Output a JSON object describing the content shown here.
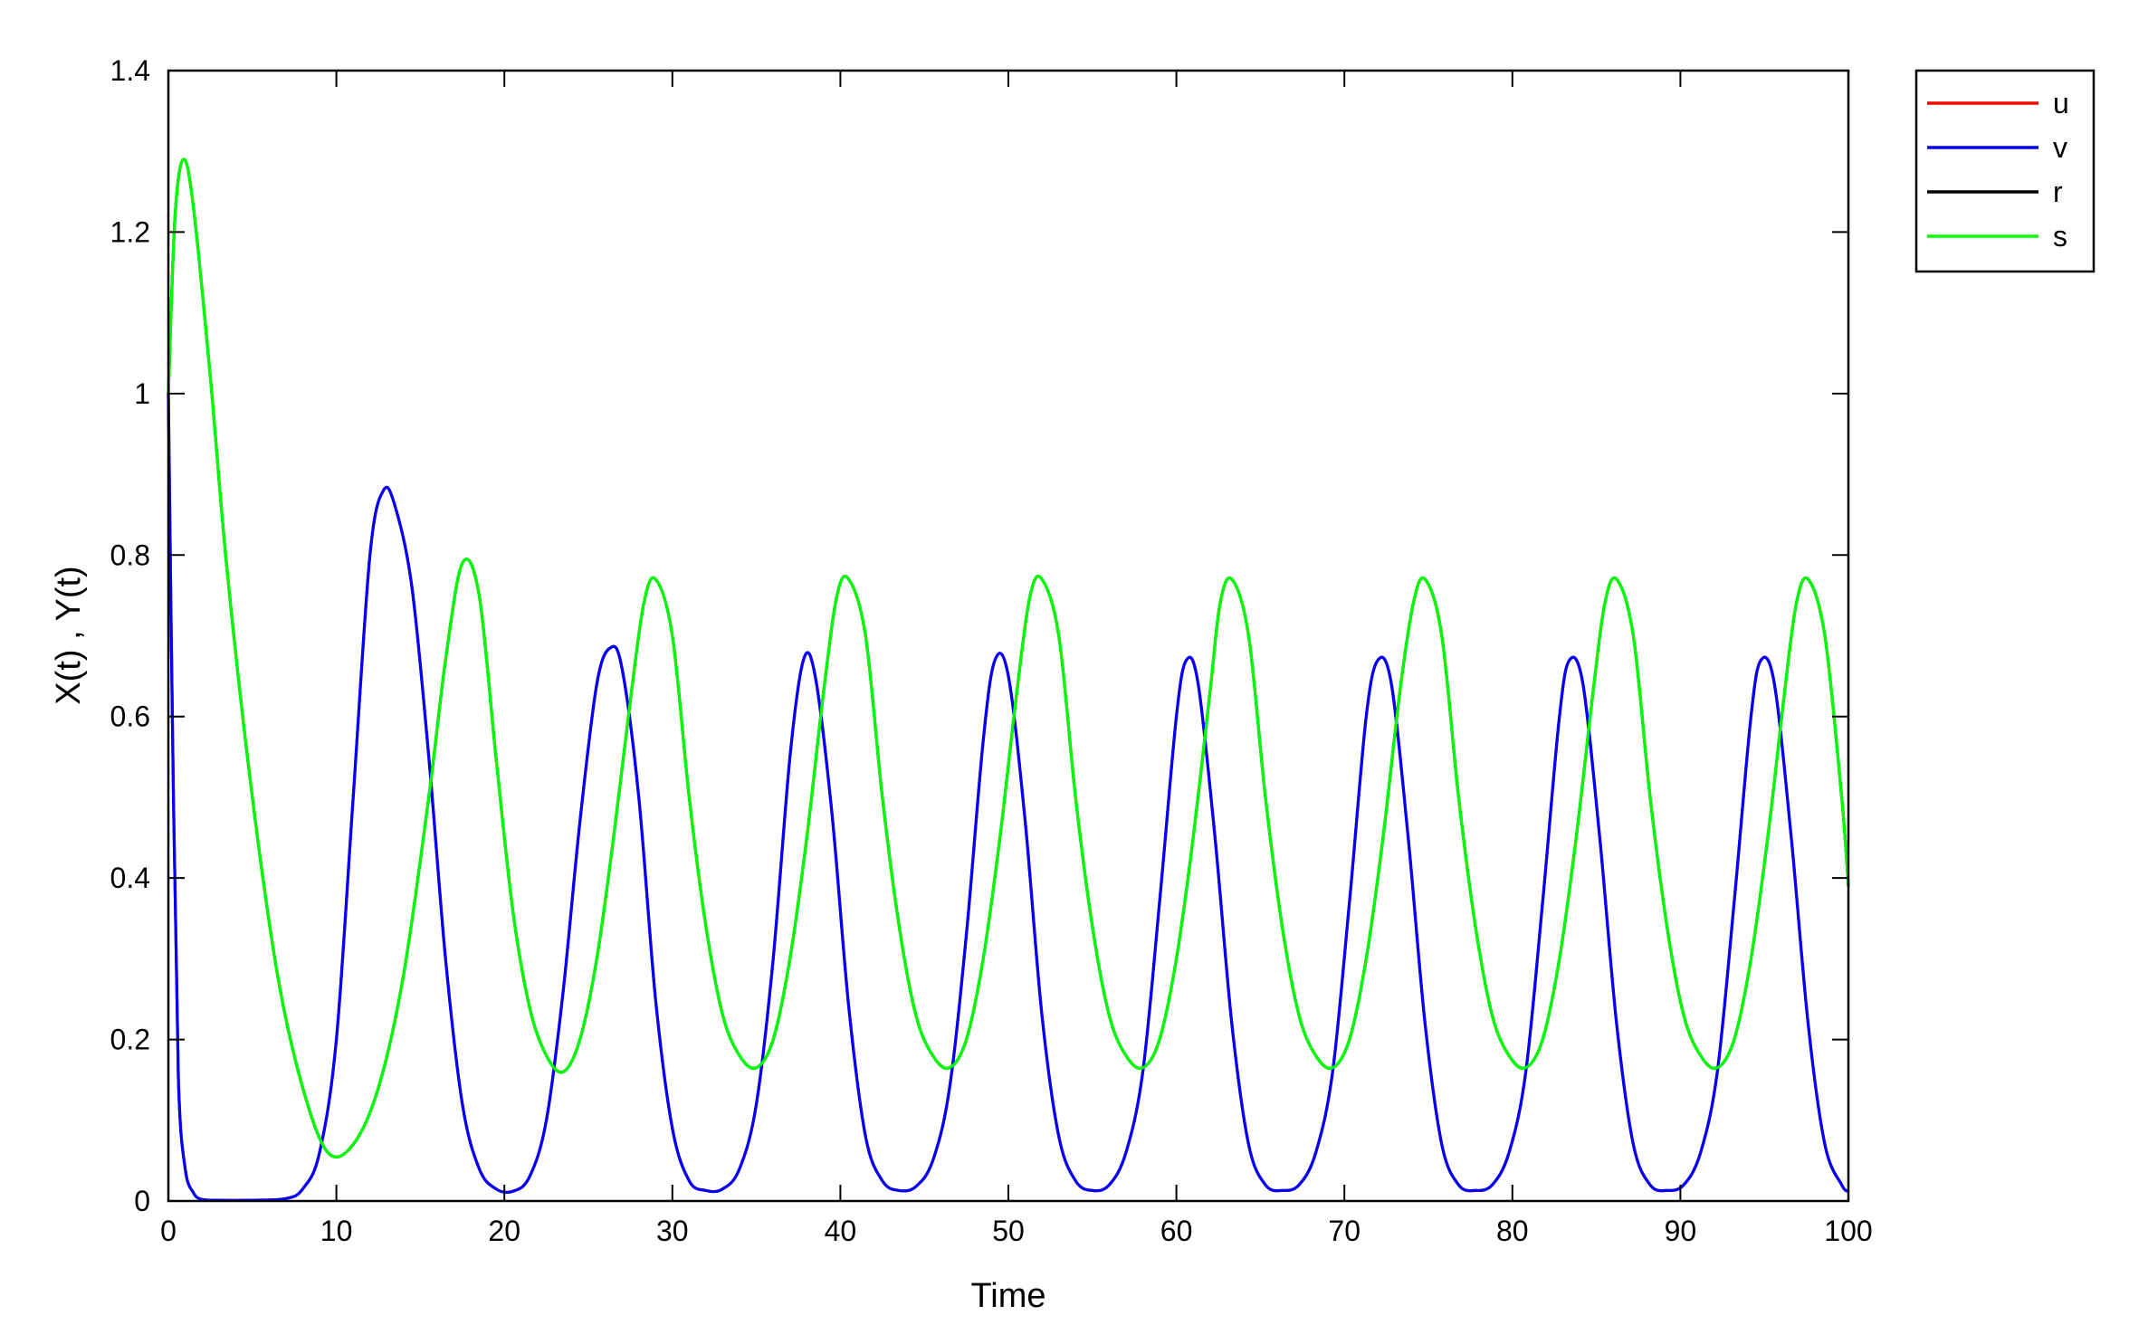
{
  "chart_data": {
    "type": "line",
    "title": "",
    "xlabel": "Time",
    "ylabel": "X(t) , Y(t)",
    "xlim": [
      0,
      100
    ],
    "ylim": [
      0,
      1.4
    ],
    "xticks": [
      0,
      10,
      20,
      30,
      40,
      50,
      60,
      70,
      80,
      90,
      100
    ],
    "yticks": [
      0,
      0.2,
      0.4,
      0.6,
      0.8,
      1,
      1.2,
      1.4
    ],
    "grid": false,
    "legend_position": "outside-top-right",
    "series": [
      {
        "name": "u",
        "color": "#ff0000",
        "x": [
          0,
          0.3,
          0.6,
          1,
          1.5,
          2,
          3,
          5,
          7,
          8,
          9,
          10,
          11,
          12,
          12.8,
          13.5,
          14.5,
          15.5,
          16.5,
          17.5,
          18.5,
          19.5,
          20.5,
          21.5,
          22.5,
          23.5,
          24.5,
          25.5,
          26.3,
          27,
          28,
          29,
          30,
          31,
          32,
          33,
          34,
          35,
          36,
          37,
          37.8,
          38.5,
          39.5,
          40.5,
          41.5,
          42.5,
          43.5,
          44.5,
          45.5,
          46.5,
          47.5,
          48.5,
          49.2,
          50,
          51,
          52,
          53,
          54,
          55,
          56,
          57,
          58,
          59,
          60,
          60.6,
          61.3,
          62.3,
          63.3,
          64.3,
          65.3,
          66.3,
          67.3,
          68.3,
          69.3,
          70.3,
          71.3,
          72,
          72.8,
          73.8,
          74.8,
          75.8,
          76.8,
          77.8,
          78.8,
          79.8,
          80.8,
          81.8,
          82.8,
          83.4,
          84.2,
          85.2,
          86.2,
          87.2,
          88.2,
          89.2,
          90.2,
          91.2,
          92.2,
          93.2,
          94.2,
          94.8,
          95.6,
          96.6,
          97.6,
          98.6,
          99.6,
          100
        ],
        "y": [
          1,
          0.5,
          0.15,
          0.04,
          0.01,
          0.002,
          0.001,
          0.001,
          0.003,
          0.015,
          0.06,
          0.2,
          0.5,
          0.8,
          0.88,
          0.86,
          0.76,
          0.55,
          0.3,
          0.12,
          0.04,
          0.015,
          0.012,
          0.03,
          0.1,
          0.26,
          0.47,
          0.64,
          0.685,
          0.66,
          0.5,
          0.25,
          0.09,
          0.025,
          0.013,
          0.015,
          0.04,
          0.12,
          0.3,
          0.55,
          0.67,
          0.65,
          0.48,
          0.24,
          0.08,
          0.025,
          0.013,
          0.018,
          0.05,
          0.14,
          0.33,
          0.57,
          0.67,
          0.65,
          0.47,
          0.23,
          0.08,
          0.025,
          0.013,
          0.02,
          0.06,
          0.16,
          0.37,
          0.6,
          0.67,
          0.64,
          0.45,
          0.22,
          0.07,
          0.02,
          0.013,
          0.02,
          0.06,
          0.16,
          0.37,
          0.6,
          0.67,
          0.64,
          0.45,
          0.22,
          0.07,
          0.02,
          0.013,
          0.02,
          0.06,
          0.16,
          0.37,
          0.6,
          0.67,
          0.64,
          0.45,
          0.22,
          0.07,
          0.02,
          0.013,
          0.02,
          0.06,
          0.16,
          0.37,
          0.6,
          0.67,
          0.64,
          0.45,
          0.22,
          0.07,
          0.02,
          0.012
        ]
      },
      {
        "name": "v",
        "color": "#0000ff",
        "x": [
          0,
          0.3,
          0.6,
          1,
          1.5,
          2,
          3,
          5,
          7,
          8,
          9,
          10,
          11,
          12,
          12.8,
          13.5,
          14.5,
          15.5,
          16.5,
          17.5,
          18.5,
          19.5,
          20.5,
          21.5,
          22.5,
          23.5,
          24.5,
          25.5,
          26.3,
          27,
          28,
          29,
          30,
          31,
          32,
          33,
          34,
          35,
          36,
          37,
          37.8,
          38.5,
          39.5,
          40.5,
          41.5,
          42.5,
          43.5,
          44.5,
          45.5,
          46.5,
          47.5,
          48.5,
          49.2,
          50,
          51,
          52,
          53,
          54,
          55,
          56,
          57,
          58,
          59,
          60,
          60.6,
          61.3,
          62.3,
          63.3,
          64.3,
          65.3,
          66.3,
          67.3,
          68.3,
          69.3,
          70.3,
          71.3,
          72,
          72.8,
          73.8,
          74.8,
          75.8,
          76.8,
          77.8,
          78.8,
          79.8,
          80.8,
          81.8,
          82.8,
          83.4,
          84.2,
          85.2,
          86.2,
          87.2,
          88.2,
          89.2,
          90.2,
          91.2,
          92.2,
          93.2,
          94.2,
          94.8,
          95.6,
          96.6,
          97.6,
          98.6,
          99.6,
          100
        ],
        "y": [
          1,
          0.5,
          0.15,
          0.04,
          0.01,
          0.002,
          0.001,
          0.001,
          0.003,
          0.015,
          0.06,
          0.2,
          0.5,
          0.8,
          0.88,
          0.86,
          0.76,
          0.55,
          0.3,
          0.12,
          0.04,
          0.015,
          0.012,
          0.03,
          0.1,
          0.26,
          0.47,
          0.64,
          0.685,
          0.66,
          0.5,
          0.25,
          0.09,
          0.025,
          0.013,
          0.015,
          0.04,
          0.12,
          0.3,
          0.55,
          0.67,
          0.65,
          0.48,
          0.24,
          0.08,
          0.025,
          0.013,
          0.018,
          0.05,
          0.14,
          0.33,
          0.57,
          0.67,
          0.65,
          0.47,
          0.23,
          0.08,
          0.025,
          0.013,
          0.02,
          0.06,
          0.16,
          0.37,
          0.6,
          0.67,
          0.64,
          0.45,
          0.22,
          0.07,
          0.02,
          0.013,
          0.02,
          0.06,
          0.16,
          0.37,
          0.6,
          0.67,
          0.64,
          0.45,
          0.22,
          0.07,
          0.02,
          0.013,
          0.02,
          0.06,
          0.16,
          0.37,
          0.6,
          0.67,
          0.64,
          0.45,
          0.22,
          0.07,
          0.02,
          0.013,
          0.02,
          0.06,
          0.16,
          0.37,
          0.6,
          0.67,
          0.64,
          0.45,
          0.22,
          0.07,
          0.02,
          0.012
        ]
      },
      {
        "name": "r",
        "color": "#000000",
        "x": [
          0,
          0.4,
          0.9,
          1.5,
          2.5,
          3.5,
          5,
          6.5,
          8,
          9.5,
          11,
          12.5,
          14,
          15.5,
          16.5,
          17.5,
          18.5,
          19.5,
          20.5,
          21.5,
          22.5,
          23.5,
          24.5,
          25.5,
          26.5,
          27.5,
          28.3,
          29,
          30,
          31,
          32,
          33,
          34,
          35,
          36,
          37,
          38,
          39,
          39.8,
          40.5,
          41.5,
          42.5,
          43.5,
          44.5,
          45.5,
          46.5,
          47.5,
          48.5,
          49.5,
          50.5,
          51.3,
          52,
          53,
          54,
          55,
          56,
          57,
          58,
          59,
          60,
          61,
          62,
          62.6,
          63.3,
          64.3,
          65.3,
          66.3,
          67.3,
          68.3,
          69.3,
          70.3,
          71.3,
          72.3,
          73.3,
          74.1,
          74.8,
          75.8,
          76.8,
          77.8,
          78.8,
          79.8,
          80.8,
          81.8,
          82.8,
          83.8,
          84.8,
          85.5,
          86.2,
          87.2,
          88.2,
          89.2,
          90.2,
          91.2,
          92.2,
          93.2,
          94.2,
          95.2,
          96.2,
          96.9,
          97.6,
          98.6,
          99.6,
          100
        ],
        "y": [
          1,
          1.22,
          1.29,
          1.23,
          1.02,
          0.78,
          0.5,
          0.28,
          0.14,
          0.06,
          0.07,
          0.14,
          0.28,
          0.5,
          0.67,
          0.79,
          0.75,
          0.55,
          0.36,
          0.24,
          0.18,
          0.16,
          0.2,
          0.3,
          0.45,
          0.62,
          0.74,
          0.77,
          0.7,
          0.5,
          0.34,
          0.23,
          0.18,
          0.165,
          0.2,
          0.3,
          0.45,
          0.63,
          0.75,
          0.77,
          0.7,
          0.5,
          0.34,
          0.23,
          0.18,
          0.165,
          0.2,
          0.3,
          0.45,
          0.63,
          0.75,
          0.77,
          0.7,
          0.5,
          0.34,
          0.23,
          0.18,
          0.165,
          0.2,
          0.3,
          0.45,
          0.63,
          0.74,
          0.77,
          0.7,
          0.5,
          0.34,
          0.23,
          0.18,
          0.165,
          0.2,
          0.3,
          0.45,
          0.63,
          0.74,
          0.77,
          0.7,
          0.5,
          0.34,
          0.23,
          0.18,
          0.165,
          0.2,
          0.3,
          0.45,
          0.63,
          0.74,
          0.77,
          0.7,
          0.5,
          0.34,
          0.23,
          0.18,
          0.165,
          0.2,
          0.3,
          0.45,
          0.63,
          0.74,
          0.77,
          0.7,
          0.5,
          0.39
        ]
      },
      {
        "name": "s",
        "color": "#00ff00",
        "x": [
          0,
          0.4,
          0.9,
          1.5,
          2.5,
          3.5,
          5,
          6.5,
          8,
          9.5,
          11,
          12.5,
          14,
          15.5,
          16.5,
          17.5,
          18.5,
          19.5,
          20.5,
          21.5,
          22.5,
          23.5,
          24.5,
          25.5,
          26.5,
          27.5,
          28.3,
          29,
          30,
          31,
          32,
          33,
          34,
          35,
          36,
          37,
          38,
          39,
          39.8,
          40.5,
          41.5,
          42.5,
          43.5,
          44.5,
          45.5,
          46.5,
          47.5,
          48.5,
          49.5,
          50.5,
          51.3,
          52,
          53,
          54,
          55,
          56,
          57,
          58,
          59,
          60,
          61,
          62,
          62.6,
          63.3,
          64.3,
          65.3,
          66.3,
          67.3,
          68.3,
          69.3,
          70.3,
          71.3,
          72.3,
          73.3,
          74.1,
          74.8,
          75.8,
          76.8,
          77.8,
          78.8,
          79.8,
          80.8,
          81.8,
          82.8,
          83.8,
          84.8,
          85.5,
          86.2,
          87.2,
          88.2,
          89.2,
          90.2,
          91.2,
          92.2,
          93.2,
          94.2,
          95.2,
          96.2,
          96.9,
          97.6,
          98.6,
          99.6,
          100
        ],
        "y": [
          1,
          1.22,
          1.29,
          1.23,
          1.02,
          0.78,
          0.5,
          0.28,
          0.14,
          0.06,
          0.07,
          0.14,
          0.28,
          0.5,
          0.67,
          0.79,
          0.75,
          0.55,
          0.36,
          0.24,
          0.18,
          0.16,
          0.2,
          0.3,
          0.45,
          0.62,
          0.74,
          0.77,
          0.7,
          0.5,
          0.34,
          0.23,
          0.18,
          0.165,
          0.2,
          0.3,
          0.45,
          0.63,
          0.75,
          0.77,
          0.7,
          0.5,
          0.34,
          0.23,
          0.18,
          0.165,
          0.2,
          0.3,
          0.45,
          0.63,
          0.75,
          0.77,
          0.7,
          0.5,
          0.34,
          0.23,
          0.18,
          0.165,
          0.2,
          0.3,
          0.45,
          0.63,
          0.74,
          0.77,
          0.7,
          0.5,
          0.34,
          0.23,
          0.18,
          0.165,
          0.2,
          0.3,
          0.45,
          0.63,
          0.74,
          0.77,
          0.7,
          0.5,
          0.34,
          0.23,
          0.18,
          0.165,
          0.2,
          0.3,
          0.45,
          0.63,
          0.74,
          0.77,
          0.7,
          0.5,
          0.34,
          0.23,
          0.18,
          0.165,
          0.2,
          0.3,
          0.45,
          0.63,
          0.74,
          0.77,
          0.7,
          0.5,
          0.39
        ]
      }
    ]
  }
}
